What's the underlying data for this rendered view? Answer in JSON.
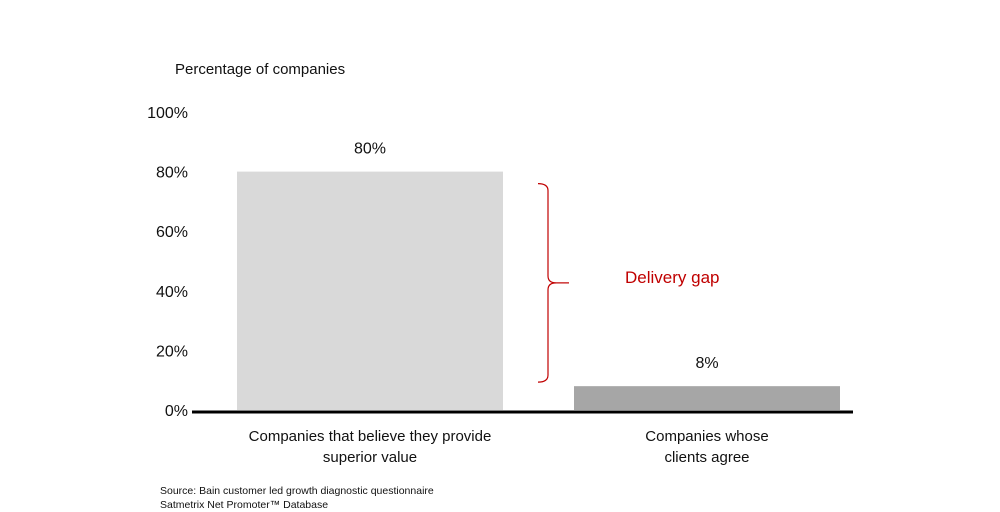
{
  "chart_data": {
    "type": "bar",
    "ylabel": "Percentage of companies",
    "ylim": [
      0,
      100
    ],
    "yticks": [
      "0%",
      "20%",
      "40%",
      "60%",
      "80%",
      "100%"
    ],
    "ytick_values": [
      0,
      20,
      40,
      60,
      80,
      100
    ],
    "categories": [
      [
        "Companies that believe they provide",
        "superior value"
      ],
      [
        "Companies whose",
        "clients agree"
      ]
    ],
    "values": [
      80,
      8
    ],
    "data_labels": [
      "80%",
      "8%"
    ],
    "bar_colors": [
      "#d9d9d9",
      "#a6a6a6"
    ],
    "annotation": {
      "text": "Delivery gap",
      "color": "#c00000",
      "from_value": 80,
      "to_value": 8
    },
    "grid": false
  },
  "source": {
    "line1": "Source: Bain customer led growth diagnostic questionnaire",
    "line2": "Satmetrix Net Promoter™ Database"
  }
}
